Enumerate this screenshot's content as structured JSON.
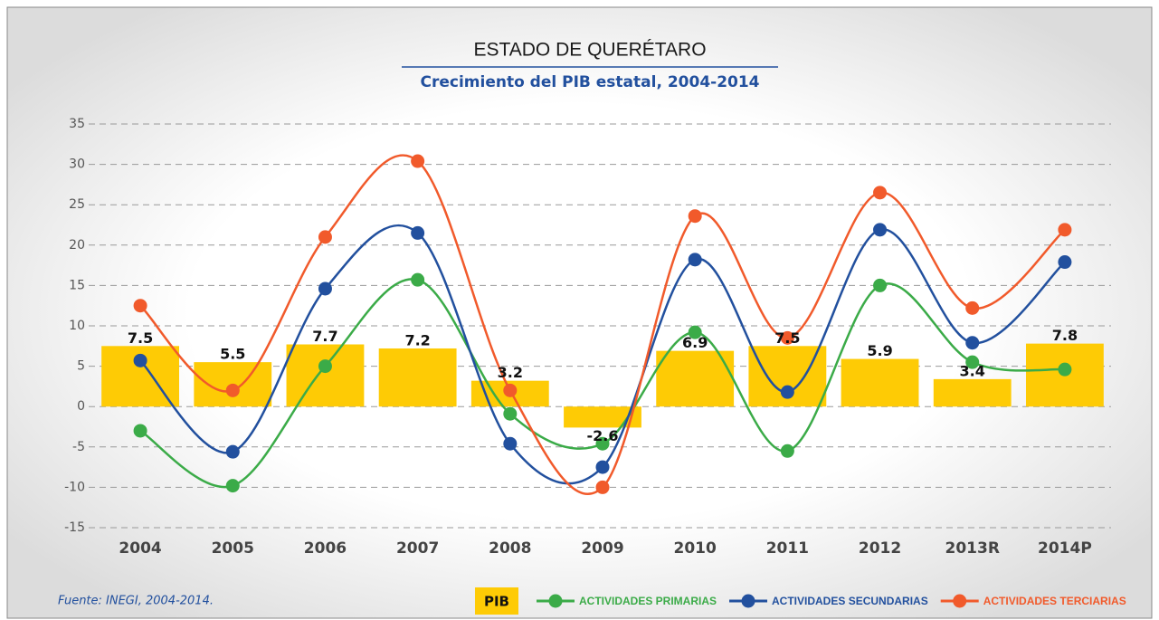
{
  "chart_data": {
    "type": "bar",
    "title": "ESTADO DE QUERÉTARO",
    "subtitle": "Crecimiento del PIB estatal, 2004-2014",
    "source": "Fuente: INEGI, 2004-2014.",
    "categories": [
      "2004",
      "2005",
      "2006",
      "2007",
      "2008",
      "2009",
      "2010",
      "2011",
      "2012",
      "2013R",
      "2014P"
    ],
    "series": [
      {
        "name": "PIB",
        "type": "bar",
        "color": "#fecb05",
        "values": [
          7.5,
          5.5,
          7.7,
          7.2,
          3.2,
          -2.6,
          6.9,
          7.5,
          5.9,
          3.4,
          7.8
        ]
      },
      {
        "name": "ACTIVIDADES PRIMARIAS",
        "type": "line",
        "color": "#3bab48",
        "values": [
          -3,
          -9.8,
          5,
          15.7,
          -0.9,
          -4.6,
          9.2,
          -5.5,
          15,
          5.5,
          4.6
        ]
      },
      {
        "name": "ACTIVIDADES SECUNDARIAS",
        "type": "line",
        "color": "#22509e",
        "values": [
          5.7,
          -5.6,
          14.6,
          21.5,
          -4.6,
          -7.5,
          18.2,
          1.8,
          21.9,
          7.9,
          17.9
        ]
      },
      {
        "name": "ACTIVIDADES TERCIARIAS",
        "type": "line",
        "color": "#f15a2b",
        "values": [
          12.5,
          2,
          21,
          30.4,
          2,
          -10,
          23.6,
          8.5,
          26.5,
          12.2,
          21.9
        ]
      }
    ],
    "ylim": [
      -15,
      35
    ],
    "yticks": [
      -15,
      -10,
      -5,
      0,
      5,
      10,
      15,
      20,
      25,
      30,
      35
    ],
    "grid": true,
    "legend": "bottom"
  }
}
